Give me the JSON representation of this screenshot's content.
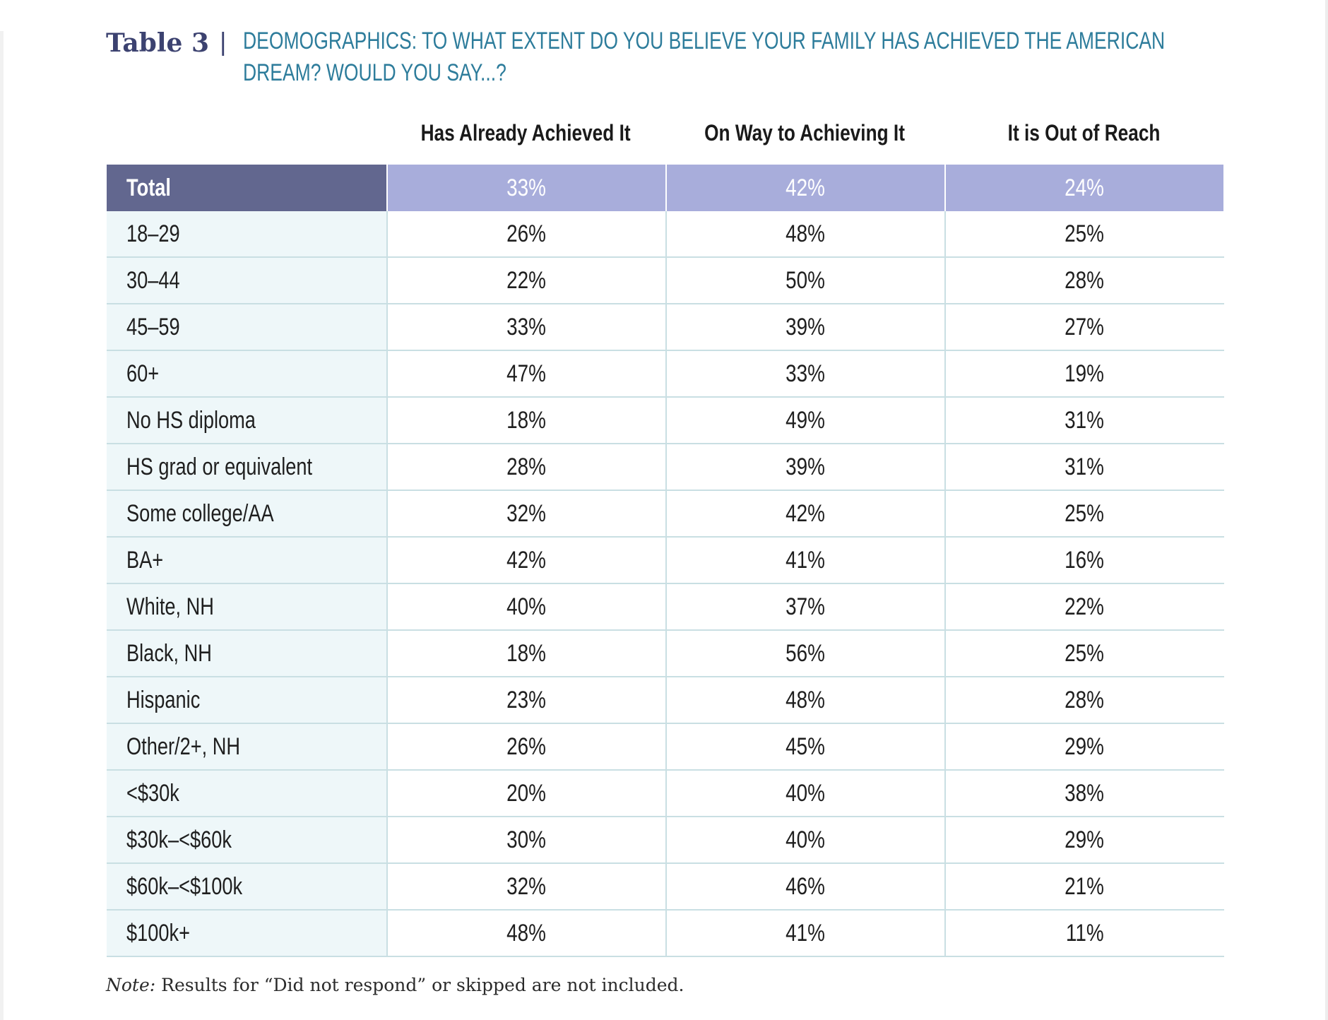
{
  "title": {
    "table_label": "Table 3",
    "separator": "|",
    "text_line1": "DEOMOGRAPHICS: TO WHAT EXTENT DO YOU BELIEVE YOUR FAMILY HAS ACHIEVED THE AMERICAN",
    "text_line2": "DREAM? WOULD YOU SAY...?"
  },
  "columns": [
    "Has Already Achieved It",
    "On Way to Achieving It",
    "It is Out of Reach"
  ],
  "total": {
    "label": "Total",
    "values": [
      "33%",
      "42%",
      "24%"
    ]
  },
  "rows": [
    {
      "label": "18–29",
      "values": [
        "26%",
        "48%",
        "25%"
      ]
    },
    {
      "label": "30–44",
      "values": [
        "22%",
        "50%",
        "28%"
      ]
    },
    {
      "label": "45–59",
      "values": [
        "33%",
        "39%",
        "27%"
      ]
    },
    {
      "label": "60+",
      "values": [
        "47%",
        "33%",
        "19%"
      ]
    },
    {
      "label": "No HS diploma",
      "values": [
        "18%",
        "49%",
        "31%"
      ]
    },
    {
      "label": "HS grad or equivalent",
      "values": [
        "28%",
        "39%",
        "31%"
      ]
    },
    {
      "label": "Some college/AA",
      "values": [
        "32%",
        "42%",
        "25%"
      ]
    },
    {
      "label": "BA+",
      "values": [
        "42%",
        "41%",
        "16%"
      ]
    },
    {
      "label": "White, NH",
      "values": [
        "40%",
        "37%",
        "22%"
      ]
    },
    {
      "label": "Black, NH",
      "values": [
        "18%",
        "56%",
        "25%"
      ]
    },
    {
      "label": "Hispanic",
      "values": [
        "23%",
        "48%",
        "28%"
      ]
    },
    {
      "label": "Other/2+, NH",
      "values": [
        "26%",
        "45%",
        "29%"
      ]
    },
    {
      "label": "<$30k",
      "values": [
        "20%",
        "40%",
        "38%"
      ]
    },
    {
      "label": "$30k–<$60k",
      "values": [
        "30%",
        "40%",
        "29%"
      ]
    },
    {
      "label": "$60k–<$100k",
      "values": [
        "32%",
        "46%",
        "21%"
      ]
    },
    {
      "label": "$100k+",
      "values": [
        "48%",
        "41%",
        "11%"
      ]
    }
  ],
  "note": {
    "prefix": "Note:",
    "text": " Results for “Did not respond” or skipped are not included."
  },
  "colors": {
    "title_text": "#2d7c9b",
    "table_label": "#3c4270",
    "total_label_bg": "#62678f",
    "total_value_bg": "#a8addb",
    "label_col_bg": "#eef7f9",
    "row_divider": "#c9dfe3"
  }
}
